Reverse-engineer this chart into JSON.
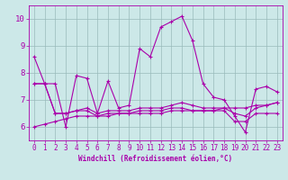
{
  "xlabel": "Windchill (Refroidissement éolien,°C)",
  "background_color": "#cce8e8",
  "line_color": "#aa00aa",
  "grid_color": "#99bbbb",
  "xlim": [
    -0.5,
    23.5
  ],
  "ylim": [
    5.5,
    10.5
  ],
  "yticks": [
    6,
    7,
    8,
    9,
    10
  ],
  "xticks": [
    0,
    1,
    2,
    3,
    4,
    5,
    6,
    7,
    8,
    9,
    10,
    11,
    12,
    13,
    14,
    15,
    16,
    17,
    18,
    19,
    20,
    21,
    22,
    23
  ],
  "series1_x": [
    0,
    1,
    2,
    3,
    4,
    5,
    6,
    7,
    8,
    9,
    10,
    11,
    12,
    13,
    14,
    15,
    16,
    17,
    18,
    19,
    20,
    21,
    22,
    23
  ],
  "series1_y": [
    8.6,
    7.6,
    7.6,
    6.0,
    7.9,
    7.8,
    6.5,
    7.7,
    6.7,
    6.8,
    8.9,
    8.6,
    9.7,
    9.9,
    10.1,
    9.2,
    7.6,
    7.1,
    7.0,
    6.4,
    5.8,
    7.4,
    7.5,
    7.3
  ],
  "series2_x": [
    0,
    1,
    2,
    3,
    4,
    5,
    6,
    7,
    8,
    9,
    10,
    11,
    12,
    13,
    14,
    15,
    16,
    17,
    18,
    19,
    20,
    21,
    22,
    23
  ],
  "series2_y": [
    7.6,
    7.6,
    6.5,
    6.5,
    6.6,
    6.6,
    6.4,
    6.5,
    6.5,
    6.5,
    6.6,
    6.6,
    6.6,
    6.7,
    6.7,
    6.6,
    6.6,
    6.6,
    6.6,
    6.2,
    6.2,
    6.5,
    6.5,
    6.5
  ],
  "series3_x": [
    0,
    1,
    2,
    3,
    4,
    5,
    6,
    7,
    8,
    9,
    10,
    11,
    12,
    13,
    14,
    15,
    16,
    17,
    18,
    19,
    20,
    21,
    22,
    23
  ],
  "series3_y": [
    7.6,
    7.6,
    6.5,
    6.5,
    6.6,
    6.7,
    6.5,
    6.6,
    6.6,
    6.6,
    6.7,
    6.7,
    6.7,
    6.8,
    6.9,
    6.8,
    6.7,
    6.7,
    6.7,
    6.5,
    6.4,
    6.7,
    6.8,
    6.9
  ],
  "series4_x": [
    0,
    1,
    2,
    3,
    4,
    5,
    6,
    7,
    8,
    9,
    10,
    11,
    12,
    13,
    14,
    15,
    16,
    17,
    18,
    19,
    20,
    21,
    22,
    23
  ],
  "series4_y": [
    6.0,
    6.1,
    6.2,
    6.3,
    6.4,
    6.4,
    6.4,
    6.4,
    6.5,
    6.5,
    6.5,
    6.5,
    6.5,
    6.6,
    6.6,
    6.6,
    6.6,
    6.6,
    6.7,
    6.7,
    6.7,
    6.8,
    6.8,
    6.9
  ]
}
